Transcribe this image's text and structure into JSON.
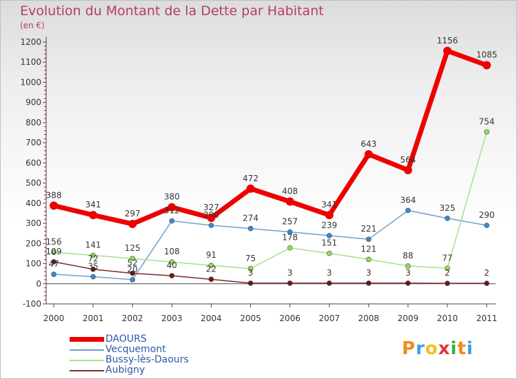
{
  "chart_data": {
    "type": "line",
    "title": "Evolution du Montant de la Dette par Habitant",
    "subtitle": "(en €)",
    "categories": [
      "2000",
      "2001",
      "2002",
      "2003",
      "2004",
      "2005",
      "2006",
      "2007",
      "2008",
      "2009",
      "2010",
      "2011"
    ],
    "ylim": [
      -100,
      1200
    ],
    "yticks": [
      -100,
      0,
      100,
      200,
      300,
      400,
      500,
      600,
      700,
      800,
      900,
      1000,
      1100,
      1200
    ],
    "grid": false,
    "series": [
      {
        "name": "DAOURS",
        "color": "#ee0000",
        "marker": "#ee0000",
        "bold": true,
        "values": [
          388,
          341,
          297,
          380,
          327,
          472,
          408,
          341,
          643,
          564,
          1156,
          1085
        ],
        "labels": [
          "388",
          "341",
          "297",
          "380",
          "327",
          "472",
          "408",
          "341",
          "643",
          "564",
          "1156",
          "1085"
        ]
      },
      {
        "name": "Vecquemont",
        "color": "#6fa0cc",
        "marker": "#3a8ad8",
        "bold": false,
        "values": [
          47,
          35,
          20,
          312,
          290,
          274,
          257,
          239,
          221,
          364,
          325,
          290
        ],
        "labels": [
          "47",
          "35",
          "20",
          "312",
          "290",
          "274",
          "257",
          "239",
          "221",
          "364",
          "325",
          "290"
        ]
      },
      {
        "name": "Bussy-lès-Daours",
        "color": "#a6e08a",
        "marker": "#8ee04a",
        "bold": false,
        "values": [
          156,
          141,
          125,
          108,
          91,
          75,
          178,
          151,
          121,
          88,
          77,
          754
        ],
        "labels": [
          "156",
          "141",
          "125",
          "108",
          "91",
          "75",
          "178",
          "151",
          "121",
          "88",
          "77",
          "754"
        ]
      },
      {
        "name": "Aubigny",
        "color": "#7a2a2a",
        "marker": "#6a1818",
        "bold": false,
        "values": [
          109,
          72,
          52,
          40,
          22,
          3,
          3,
          3,
          3,
          3,
          2,
          2
        ],
        "labels": [
          "109",
          "72",
          "52",
          "40",
          "22",
          "3",
          "3",
          "3",
          "3",
          "3",
          "2",
          "2"
        ]
      }
    ]
  },
  "logo": {
    "letters": [
      "P",
      "r",
      "o",
      "x",
      "i",
      "t",
      "i"
    ],
    "colors": [
      "#f08a1c",
      "#3aa0e0",
      "#f0c020",
      "#e03a3a",
      "#3ab04a",
      "#f08a1c",
      "#3aa0e0"
    ]
  }
}
